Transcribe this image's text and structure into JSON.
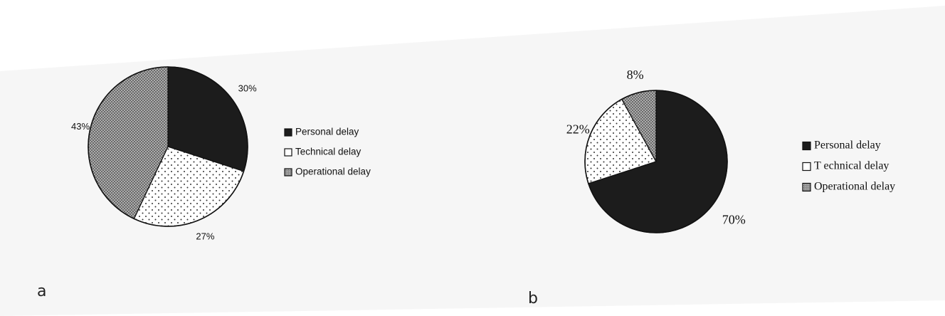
{
  "panels": [
    {
      "letter": "a"
    },
    {
      "letter": "b"
    }
  ],
  "chart_data": [
    {
      "type": "pie",
      "title": "",
      "categories": [
        "Personal delay",
        "Technical delay",
        "Operational delay"
      ],
      "values": [
        30,
        27,
        43
      ],
      "value_labels": [
        "30%",
        "27%",
        "43%"
      ],
      "unit": "%",
      "legend": "right",
      "fills": {
        "Personal delay": "#1c1c1c",
        "Technical delay": "dots-white",
        "Operational delay": "dense-grey-dots"
      }
    },
    {
      "type": "pie",
      "title": "",
      "categories": [
        "Personal delay",
        "Technical delay",
        "Operational delay"
      ],
      "values": [
        70,
        22,
        8
      ],
      "value_labels": [
        "70%",
        "22%",
        "8%"
      ],
      "unit": "%",
      "legend": "right",
      "fills": {
        "Personal delay": "#1c1c1c",
        "Technical delay": "dots-white",
        "Operational delay": "dense-grey-dots"
      }
    }
  ],
  "legend_entries": [
    [
      "Personal delay",
      "Technical delay",
      "Operational delay"
    ],
    [
      "Personal delay",
      "T echnical delay",
      "Operational delay"
    ]
  ]
}
